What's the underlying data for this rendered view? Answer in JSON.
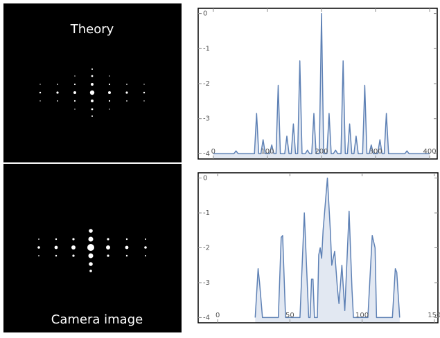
{
  "images": [
    {
      "label": "Theory"
    },
    {
      "label": "Camera image"
    }
  ],
  "chart_data": [
    {
      "type": "area",
      "x": [
        0,
        38,
        42,
        46,
        76,
        80,
        84,
        88,
        92,
        96,
        104,
        108,
        112,
        116,
        120,
        124,
        132,
        136,
        140,
        144,
        148,
        152,
        156,
        160,
        164,
        170,
        174,
        178,
        182,
        186,
        190,
        196,
        200,
        204,
        210,
        214,
        218,
        222,
        226,
        230,
        236,
        240,
        244,
        248,
        252,
        256,
        260,
        264,
        268,
        276,
        280,
        284,
        288,
        292,
        296,
        304,
        308,
        312,
        316,
        320,
        324,
        354,
        358,
        362,
        400
      ],
      "series": [
        {
          "color": "#5e81b5",
          "values": [
            -4,
            -4,
            -3.92,
            -4,
            -4,
            -2.85,
            -4,
            -4,
            -3.6,
            -4,
            -4,
            -3.75,
            -4,
            -4,
            -2.05,
            -4,
            -4,
            -3.5,
            -4,
            -4,
            -3.15,
            -4,
            -4,
            -1.35,
            -4,
            -4,
            -3.9,
            -4,
            -4,
            -2.85,
            -4,
            -4,
            0,
            -4,
            -4,
            -2.85,
            -4,
            -4,
            -3.9,
            -4,
            -4,
            -1.35,
            -4,
            -4,
            -3.15,
            -4,
            -4,
            -3.5,
            -4,
            -4,
            -2.05,
            -4,
            -4,
            -3.75,
            -4,
            -4,
            -3.6,
            -4,
            -4,
            -2.85,
            -4,
            -4,
            -3.92,
            -4,
            -4
          ]
        }
      ],
      "fill_color": "#dbe2ef",
      "xlim": [
        -28,
        414
      ],
      "ylim": [
        -4.15,
        0.15
      ],
      "xticks": [
        0,
        100,
        200,
        300,
        400
      ],
      "yticks": [
        0,
        -1,
        -2,
        -3,
        -4
      ]
    },
    {
      "type": "area",
      "x": [
        26,
        28,
        29,
        31,
        42,
        44,
        45,
        47,
        57,
        60,
        63,
        64,
        65,
        66,
        67,
        69,
        70,
        71,
        72,
        73,
        76,
        78,
        79,
        81,
        83,
        84,
        86,
        88,
        91,
        93,
        94,
        104,
        107,
        109,
        110,
        121,
        123,
        124,
        126
      ],
      "series": [
        {
          "color": "#5e81b5",
          "values": [
            -4,
            -2.6,
            -3.0,
            -4,
            -4,
            -1.7,
            -1.65,
            -4,
            -4,
            -1.0,
            -4,
            -4,
            -2.9,
            -2.9,
            -4,
            -4,
            -2.2,
            -2.0,
            -2.3,
            -1.5,
            0,
            -1.5,
            -2.5,
            -2.1,
            -3.2,
            -3.6,
            -2.5,
            -3.8,
            -0.95,
            -3.2,
            -4,
            -4,
            -1.65,
            -2.0,
            -4,
            -4,
            -2.6,
            -2.7,
            -4
          ]
        }
      ],
      "fill_color": "#dbe2ef",
      "xlim": [
        -13.5,
        152.5
      ],
      "ylim": [
        -4.15,
        0.15
      ],
      "xticks": [
        0,
        50,
        100,
        150
      ],
      "yticks": [
        0,
        -1,
        -2,
        -3,
        -4
      ]
    }
  ]
}
